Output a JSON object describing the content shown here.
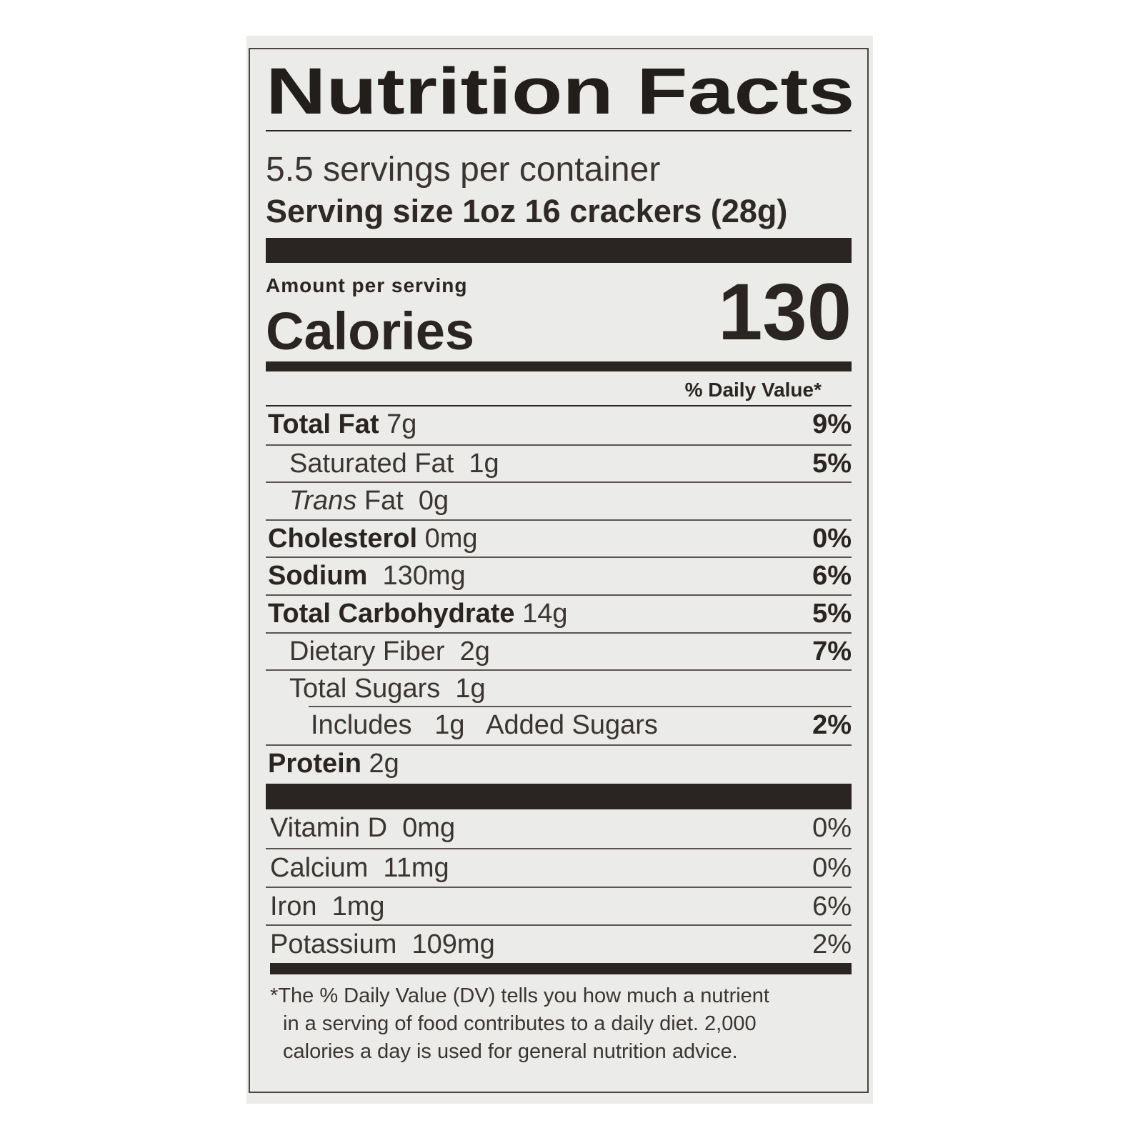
{
  "label": {
    "title": "Nutrition Facts",
    "servings_per_container": "5.5 servings per container",
    "serving_size": "Serving size 1oz 16 crackers (28g)",
    "amount_per_serving": "Amount per serving",
    "calories_label": "Calories",
    "calories_value": "130",
    "daily_value_header": "% Daily Value*",
    "nutrients": [
      {
        "name": "Total Fat",
        "amount": "7g",
        "dv": "9%"
      },
      {
        "name": "Saturated Fat",
        "amount": "1g",
        "dv": "5%"
      },
      {
        "name": "Trans",
        "name_suffix": "Fat",
        "amount": "0g",
        "dv": ""
      },
      {
        "name": "Cholesterol",
        "amount": "0mg",
        "dv": "0%"
      },
      {
        "name": "Sodium",
        "amount": "130mg",
        "dv": "6%"
      },
      {
        "name": "Total Carbohydrate",
        "amount": "14g",
        "dv": "5%"
      },
      {
        "name": "Dietary Fiber",
        "amount": "2g",
        "dv": "7%"
      },
      {
        "name": "Total Sugars",
        "amount": "1g",
        "dv": ""
      },
      {
        "name": "Includes",
        "amount": "1g",
        "name_suffix": "Added Sugars",
        "dv": "2%"
      },
      {
        "name": "Protein",
        "amount": "2g",
        "dv": ""
      }
    ],
    "vitamins": [
      {
        "name": "Vitamin D",
        "amount": "0mg",
        "dv": "0%"
      },
      {
        "name": "Calcium",
        "amount": "11mg",
        "dv": "0%"
      },
      {
        "name": "Iron",
        "amount": "1mg",
        "dv": "6%"
      },
      {
        "name": "Potassium",
        "amount": "109mg",
        "dv": "2%"
      }
    ],
    "footnote": [
      "*The % Daily Value (DV) tells you how much a nutrient",
      "in a serving of food contributes to a daily diet. 2,000",
      "calories a day is used for general nutrition advice."
    ]
  },
  "colors": {
    "ink": "#2a2522",
    "panel": "#ebebe9",
    "background": "#ffffff"
  }
}
